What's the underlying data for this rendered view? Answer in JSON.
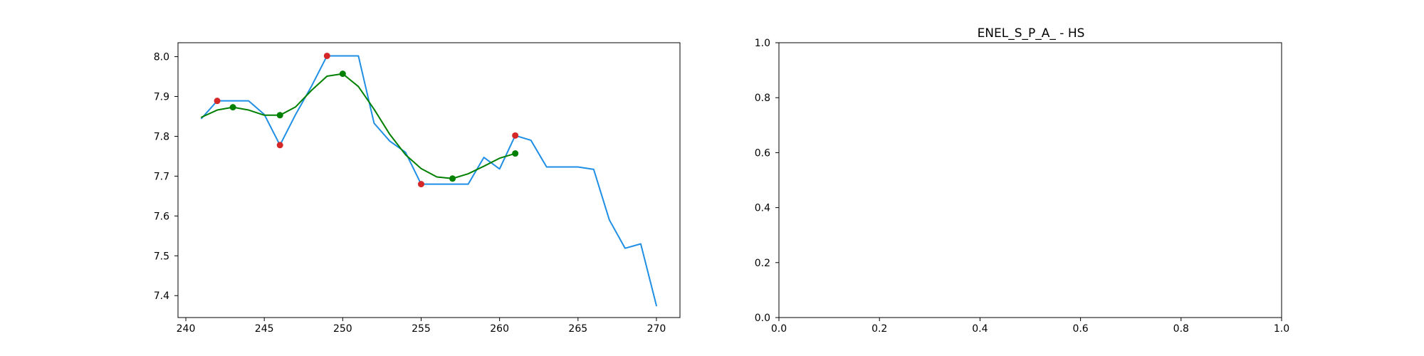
{
  "chart_data": [
    {
      "type": "line",
      "title": "",
      "xlabel": "",
      "ylabel": "",
      "xlim": [
        239.5,
        271.5
      ],
      "ylim": [
        7.345,
        8.035
      ],
      "xticks": [
        240,
        245,
        250,
        255,
        260,
        265,
        270
      ],
      "yticks": [
        7.4,
        7.5,
        7.6,
        7.7,
        7.8,
        7.9,
        8.0
      ],
      "grid": false,
      "legend": "none",
      "series": [
        {
          "kind": "line",
          "color": "#1f8fe6",
          "x": [
            241,
            242,
            243,
            244,
            245,
            246,
            247,
            248,
            249,
            250,
            251,
            252,
            253,
            254,
            255,
            256,
            257,
            258,
            259,
            260,
            261,
            262,
            263,
            264,
            265,
            266,
            267,
            268,
            269,
            270
          ],
          "y": [
            7.845,
            7.889,
            7.889,
            7.889,
            7.855,
            7.778,
            7.855,
            7.925,
            8.002,
            8.002,
            8.002,
            7.833,
            7.788,
            7.76,
            7.68,
            7.68,
            7.68,
            7.68,
            7.747,
            7.718,
            7.802,
            7.79,
            7.723,
            7.723,
            7.723,
            7.717,
            7.59,
            7.519,
            7.53,
            7.375
          ]
        },
        {
          "kind": "line",
          "color": "#008000",
          "x": [
            241,
            242,
            243,
            244,
            245,
            246,
            247,
            248,
            249,
            250,
            251,
            252,
            253,
            254,
            255,
            256,
            257,
            258,
            259,
            260,
            261
          ],
          "y": [
            7.848,
            7.866,
            7.873,
            7.866,
            7.853,
            7.853,
            7.874,
            7.915,
            7.951,
            7.957,
            7.925,
            7.868,
            7.805,
            7.754,
            7.719,
            7.698,
            7.694,
            7.706,
            7.725,
            7.745,
            7.757
          ]
        },
        {
          "kind": "scatter",
          "color": "#d62728",
          "x": [
            242,
            246,
            249,
            255,
            261
          ],
          "y": [
            7.889,
            7.778,
            8.002,
            7.68,
            7.802
          ]
        },
        {
          "kind": "scatter",
          "color": "#008000",
          "x": [
            243,
            246,
            250,
            257,
            261
          ],
          "y": [
            7.873,
            7.853,
            7.957,
            7.694,
            7.757
          ]
        }
      ]
    },
    {
      "type": "line",
      "title": "ENEL_S_P_A_ - HS",
      "xlabel": "",
      "ylabel": "",
      "xlim": [
        0,
        1
      ],
      "ylim": [
        0,
        1
      ],
      "xticks": [
        0.0,
        0.2,
        0.4,
        0.6,
        0.8,
        1.0
      ],
      "yticks": [
        0.0,
        0.2,
        0.4,
        0.6,
        0.8,
        1.0
      ],
      "xtick_labels": [
        "0.0",
        "0.2",
        "0.4",
        "0.6",
        "0.8",
        "1.0"
      ],
      "ytick_labels": [
        "0.0",
        "0.2",
        "0.4",
        "0.6",
        "0.8",
        "1.0"
      ],
      "grid": false,
      "legend": "none",
      "series": []
    }
  ]
}
